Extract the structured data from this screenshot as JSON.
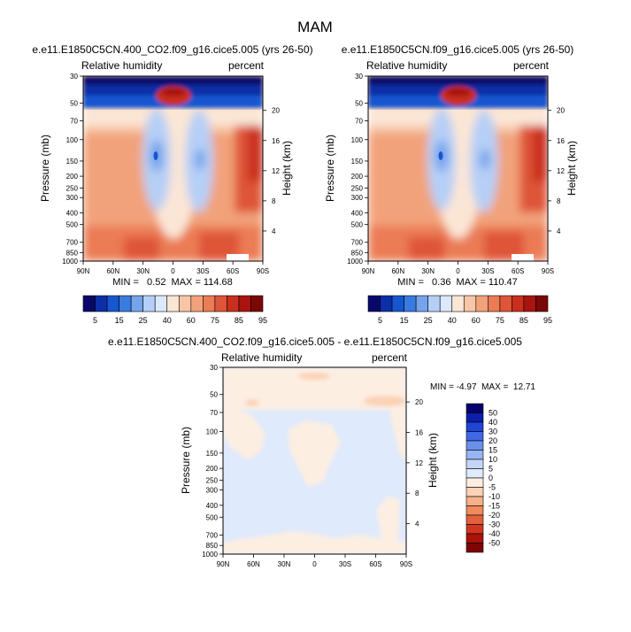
{
  "figure": {
    "title": "MAM"
  },
  "colors": {
    "rh_levels": [
      "#08086b",
      "#0c2fa6",
      "#1657d0",
      "#3a7be0",
      "#76a4ec",
      "#b6cff6",
      "#dce8fb",
      "#fbe6d6",
      "#f8c6a6",
      "#f2a27a",
      "#eb7c55",
      "#de5537",
      "#c92f1f",
      "#a91410",
      "#7a0806"
    ],
    "diff_levels": [
      "#08006b",
      "#0b1fa8",
      "#1e45d8",
      "#3f69e5",
      "#6b8fec",
      "#98b4f2",
      "#c4d6f8",
      "#dfeafc",
      "#fdeee2",
      "#fbd2b6",
      "#f6b088",
      "#f08a5e",
      "#e4603c",
      "#cf3620",
      "#ad1209",
      "#7d0504"
    ],
    "nodata": "#ffffff"
  },
  "chart_data": [
    {
      "type": "heatmap",
      "title": "e.e11.E1850C5CN.400_CO2.f09_g16.cice5.005 (yrs 26-50)",
      "left_subtitle": "Relative humidity",
      "right_subtitle": "percent",
      "xlabel": "",
      "ylabel": "Pressure (mb)",
      "ylabel_right": "Height (km)",
      "x_ticks": [
        "90N",
        "60N",
        "30N",
        "0",
        "30S",
        "60S",
        "90S"
      ],
      "x_range": [
        90,
        -90
      ],
      "y_ticks": [
        30,
        50,
        70,
        100,
        150,
        200,
        250,
        300,
        400,
        500,
        700,
        850,
        1000
      ],
      "y_range": [
        30,
        1000
      ],
      "y_scale": "log",
      "y_right_ticks": [
        4,
        8,
        12,
        16,
        20
      ],
      "stats": {
        "min": 0.52,
        "max": 114.68,
        "text": "MIN =   0.52  MAX = 114.68"
      },
      "colorbar": {
        "orientation": "horizontal",
        "labels": [
          "5",
          "15",
          "25",
          "40",
          "60",
          "75",
          "85",
          "95"
        ]
      }
    },
    {
      "type": "heatmap",
      "title": "e.e11.E1850C5CN.f09_g16.cice5.005 (yrs 26-50)",
      "left_subtitle": "Relative humidity",
      "right_subtitle": "percent",
      "xlabel": "",
      "ylabel": "Pressure (mb)",
      "ylabel_right": "Height (km)",
      "x_ticks": [
        "90N",
        "60N",
        "30N",
        "0",
        "30S",
        "60S",
        "90S"
      ],
      "x_range": [
        90,
        -90
      ],
      "y_ticks": [
        30,
        50,
        70,
        100,
        150,
        200,
        250,
        300,
        400,
        500,
        700,
        850,
        1000
      ],
      "y_range": [
        30,
        1000
      ],
      "y_scale": "log",
      "y_right_ticks": [
        4,
        8,
        12,
        16,
        20
      ],
      "stats": {
        "min": 0.36,
        "max": 110.47,
        "text": "MIN =   0.36  MAX = 110.47"
      },
      "colorbar": {
        "orientation": "horizontal",
        "labels": [
          "5",
          "15",
          "25",
          "40",
          "60",
          "75",
          "85",
          "95"
        ]
      }
    },
    {
      "type": "heatmap",
      "title": "e.e11.E1850C5CN.400_CO2.f09_g16.cice5.005 - e.e11.E1850C5CN.f09_g16.cice5.005",
      "left_subtitle": "Relative humidity",
      "right_subtitle": "percent",
      "xlabel": "",
      "ylabel": "Pressure (mb)",
      "ylabel_right": "Height (km)",
      "x_ticks": [
        "90N",
        "60N",
        "30N",
        "0",
        "30S",
        "60S",
        "90S"
      ],
      "x_range": [
        90,
        -90
      ],
      "y_ticks": [
        30,
        50,
        70,
        100,
        150,
        200,
        250,
        300,
        400,
        500,
        700,
        850,
        1000
      ],
      "y_range": [
        30,
        1000
      ],
      "y_scale": "log",
      "y_right_ticks": [
        4,
        8,
        12,
        16,
        20
      ],
      "stats": {
        "min": -4.97,
        "max": 12.71,
        "text": "MIN = -4.97  MAX =  12.71"
      },
      "colorbar": {
        "orientation": "vertical",
        "labels": [
          "50",
          "40",
          "30",
          "20",
          "15",
          "10",
          "5",
          "0",
          "-5",
          "-10",
          "-15",
          "-20",
          "-30",
          "-40",
          "-50"
        ]
      }
    }
  ]
}
